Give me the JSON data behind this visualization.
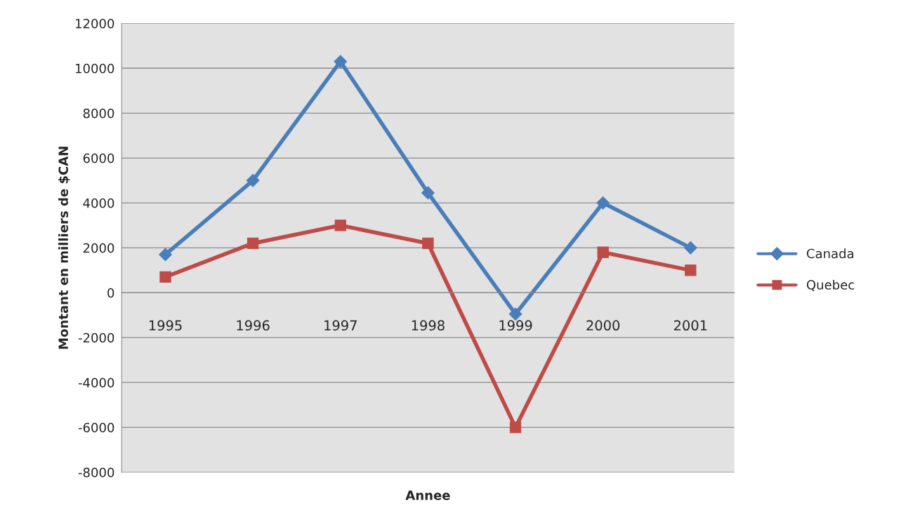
{
  "chart_data": {
    "type": "line",
    "xlabel": "Annee",
    "ylabel": "Montant en milliers de $CAN",
    "categories": [
      "1995",
      "1996",
      "1997",
      "1998",
      "1999",
      "2000",
      "2001"
    ],
    "series": [
      {
        "name": "Canada",
        "color": "#4a7ebb",
        "marker": "diamond",
        "values": [
          1700,
          5000,
          10300,
          4450,
          -950,
          4000,
          2000
        ]
      },
      {
        "name": "Quebec",
        "color": "#be4b48",
        "marker": "square",
        "values": [
          700,
          2200,
          3000,
          2200,
          -6000,
          1800,
          1000
        ]
      }
    ],
    "ylim": [
      -8000,
      12000
    ],
    "yticks": [
      -8000,
      -6000,
      -4000,
      -2000,
      0,
      2000,
      4000,
      6000,
      8000,
      10000,
      12000
    ],
    "grid": "y",
    "legend": "right",
    "line_style": "solid"
  }
}
